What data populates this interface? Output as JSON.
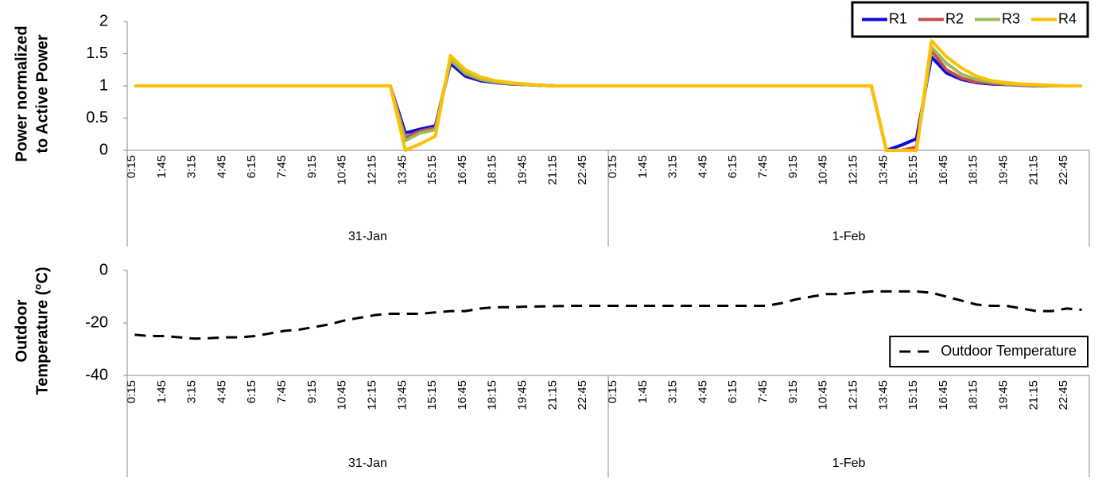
{
  "chart_data": [
    {
      "type": "line",
      "ylabel": [
        "Power normalized",
        "to Active Power"
      ],
      "categories": [
        "0:15",
        null,
        "1:45",
        null,
        "3:15",
        null,
        "4:45",
        null,
        "6:15",
        null,
        "7:45",
        null,
        "9:15",
        null,
        "10:45",
        null,
        "12:15",
        null,
        "13:45",
        null,
        "15:15",
        null,
        "16:45",
        null,
        "18:15",
        null,
        "19:45",
        null,
        "21:15",
        null,
        "22:45",
        null,
        "0:15",
        null,
        "1:45",
        null,
        "3:15",
        null,
        "4:45",
        null,
        "6:15",
        null,
        "7:45",
        null,
        "9:15",
        null,
        "10:45",
        null,
        "12:15",
        null,
        "13:45",
        null,
        "15:15",
        null,
        "16:45",
        null,
        "18:15",
        null,
        "19:45",
        null,
        "21:15",
        null,
        "22:45",
        null
      ],
      "groups": [
        "31-Jan",
        "1-Feb"
      ],
      "ylim": [
        0,
        2
      ],
      "yticks": [
        0,
        0.5,
        1,
        1.5,
        2
      ],
      "legend": "upper right",
      "series": [
        {
          "name": "R1",
          "color": "#0a0ae0",
          "values": [
            1,
            1,
            1,
            1,
            1,
            1,
            1,
            1,
            1,
            1,
            1,
            1,
            1,
            1,
            1,
            1,
            1,
            1,
            0.27,
            0.33,
            0.38,
            1.35,
            1.15,
            1.08,
            1.05,
            1.03,
            1.02,
            1.01,
            1,
            1,
            1,
            1,
            1,
            1,
            1,
            1,
            1,
            1,
            1,
            1,
            1,
            1,
            1,
            1,
            1,
            1,
            1,
            1,
            1,
            1,
            0,
            0.08,
            0.18,
            1.45,
            1.2,
            1.1,
            1.05,
            1.03,
            1.02,
            1.01,
            1,
            1,
            1,
            1
          ]
        },
        {
          "name": "R2",
          "color": "#c0504d",
          "values": [
            1,
            1,
            1,
            1,
            1,
            1,
            1,
            1,
            1,
            1,
            1,
            1,
            1,
            1,
            1,
            1,
            1,
            1,
            0.2,
            0.3,
            0.35,
            1.4,
            1.18,
            1.1,
            1.06,
            1.03,
            1.02,
            1.01,
            1,
            1,
            1,
            1,
            1,
            1,
            1,
            1,
            1,
            1,
            1,
            1,
            1,
            1,
            1,
            1,
            1,
            1,
            1,
            1,
            1,
            1,
            0,
            0,
            0.05,
            1.55,
            1.25,
            1.12,
            1.06,
            1.04,
            1.02,
            1.01,
            1,
            1,
            1,
            1
          ]
        },
        {
          "name": "R3",
          "color": "#9bbb59",
          "values": [
            1,
            1,
            1,
            1,
            1,
            1,
            1,
            1,
            1,
            1,
            1,
            1,
            1,
            1,
            1,
            1,
            1,
            1,
            0.15,
            0.27,
            0.32,
            1.4,
            1.2,
            1.1,
            1.06,
            1.04,
            1.02,
            1.01,
            1,
            1,
            1,
            1,
            1,
            1,
            1,
            1,
            1,
            1,
            1,
            1,
            1,
            1,
            1,
            1,
            1,
            1,
            1,
            1,
            1,
            1,
            0,
            0,
            0,
            1.6,
            1.35,
            1.18,
            1.1,
            1.06,
            1.03,
            1.02,
            1.01,
            1,
            1,
            1
          ]
        },
        {
          "name": "R4",
          "color": "#ffc000",
          "values": [
            1,
            1,
            1,
            1,
            1,
            1,
            1,
            1,
            1,
            1,
            1,
            1,
            1,
            1,
            1,
            1,
            1,
            1,
            0,
            0.1,
            0.22,
            1.47,
            1.25,
            1.14,
            1.08,
            1.05,
            1.03,
            1.01,
            1,
            1,
            1,
            1,
            1,
            1,
            1,
            1,
            1,
            1,
            1,
            1,
            1,
            1,
            1,
            1,
            1,
            1,
            1,
            1,
            1,
            1,
            0,
            0,
            0,
            1.7,
            1.45,
            1.28,
            1.15,
            1.08,
            1.05,
            1.03,
            1.02,
            1.01,
            1,
            1
          ]
        }
      ]
    },
    {
      "type": "line",
      "ylabel": [
        "Outdoor",
        "Temperature (°C)"
      ],
      "categories": [
        "0:15",
        null,
        "1:45",
        null,
        "3:15",
        null,
        "4:45",
        null,
        "6:15",
        null,
        "7:45",
        null,
        "9:15",
        null,
        "10:45",
        null,
        "12:15",
        null,
        "13:45",
        null,
        "15:15",
        null,
        "16:45",
        null,
        "18:15",
        null,
        "19:45",
        null,
        "21:15",
        null,
        "22:45",
        null,
        "0:15",
        null,
        "1:45",
        null,
        "3:15",
        null,
        "4:45",
        null,
        "6:15",
        null,
        "7:45",
        null,
        "9:15",
        null,
        "10:45",
        null,
        "12:15",
        null,
        "13:45",
        null,
        "15:15",
        null,
        "16:45",
        null,
        "18:15",
        null,
        "19:45",
        null,
        "21:15",
        null,
        "22:45",
        null
      ],
      "groups": [
        "31-Jan",
        "1-Feb"
      ],
      "ylim": [
        -40,
        0
      ],
      "yticks": [
        -40,
        -20,
        0
      ],
      "legend": "right",
      "series": [
        {
          "name": "Outdoor Temperature",
          "color": "#000000",
          "dash": true,
          "values": [
            -24.5,
            -25,
            -25,
            -25.5,
            -26,
            -25.8,
            -25.5,
            -25.5,
            -25,
            -24,
            -23,
            -22.5,
            -21.5,
            -20.5,
            -19,
            -18,
            -17,
            -16.5,
            -16.5,
            -16.5,
            -16,
            -15.5,
            -15.5,
            -14.5,
            -14,
            -14,
            -13.8,
            -13.7,
            -13.6,
            -13.5,
            -13.5,
            -13.5,
            -13.5,
            -13.5,
            -13.5,
            -13.5,
            -13.5,
            -13.5,
            -13.5,
            -13.5,
            -13.5,
            -13.5,
            -13.5,
            -12.5,
            -11,
            -10,
            -9,
            -9,
            -8.5,
            -8,
            -8,
            -8,
            -8,
            -8.5,
            -10,
            -11.5,
            -13,
            -13.5,
            -13.5,
            -14.5,
            -15.5,
            -15.5,
            -14.5,
            -15
          ]
        }
      ]
    }
  ]
}
